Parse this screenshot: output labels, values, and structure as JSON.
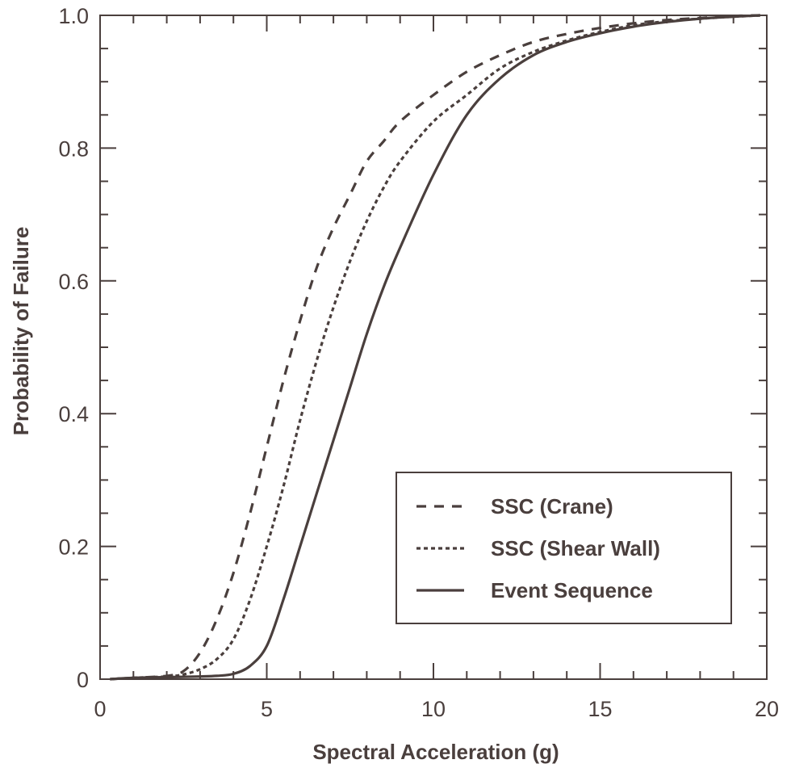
{
  "colors": {
    "ink": "#4a3f3d",
    "background": "#ffffff"
  },
  "chart_data": {
    "type": "line",
    "title": "",
    "xlabel": "Spectral Acceleration (g)",
    "ylabel": "Probability of Failure",
    "xlim": [
      0,
      20
    ],
    "ylim": [
      0,
      1.0
    ],
    "x_ticks": [
      0,
      5,
      10,
      15,
      20
    ],
    "x_tick_labels": [
      "0",
      "5",
      "10",
      "15",
      "20"
    ],
    "y_ticks": [
      0,
      0.2,
      0.4,
      0.6,
      0.8,
      1.0
    ],
    "y_tick_labels": [
      "0",
      "0.2",
      "0.4",
      "0.6",
      "0.8",
      "1.0"
    ],
    "grid": false,
    "legend_position": "lower-right",
    "series": [
      {
        "name": "SSC (Crane)",
        "style": "dashed",
        "x": [
          0.3,
          1.0,
          2.0,
          2.5,
          3.0,
          3.5,
          4.0,
          4.5,
          5.0,
          5.5,
          6.0,
          6.5,
          7.0,
          7.5,
          8.0,
          8.5,
          9.0,
          10.0,
          11.0,
          12.0,
          13.0,
          14.0,
          15.0,
          16.0,
          17.0,
          18.0,
          19.0,
          19.8
        ],
        "y": [
          0.0,
          0.002,
          0.005,
          0.012,
          0.04,
          0.09,
          0.16,
          0.25,
          0.35,
          0.45,
          0.54,
          0.62,
          0.68,
          0.73,
          0.78,
          0.81,
          0.84,
          0.88,
          0.915,
          0.94,
          0.96,
          0.972,
          0.981,
          0.988,
          0.993,
          0.996,
          0.999,
          1.0
        ]
      },
      {
        "name": "SSC (Shear Wall)",
        "style": "dotted",
        "x": [
          0.3,
          1.0,
          2.0,
          2.5,
          3.0,
          3.5,
          4.0,
          4.5,
          5.0,
          5.5,
          6.0,
          6.5,
          7.0,
          7.5,
          8.0,
          8.5,
          9.0,
          10.0,
          11.0,
          12.0,
          13.0,
          14.0,
          15.0,
          16.0,
          17.0,
          18.0,
          19.0,
          19.8
        ],
        "y": [
          0.0,
          0.002,
          0.004,
          0.007,
          0.015,
          0.03,
          0.06,
          0.12,
          0.2,
          0.29,
          0.39,
          0.48,
          0.56,
          0.63,
          0.69,
          0.74,
          0.78,
          0.84,
          0.88,
          0.92,
          0.945,
          0.962,
          0.975,
          0.985,
          0.991,
          0.995,
          0.998,
          1.0
        ]
      },
      {
        "name": "Event Sequence",
        "style": "solid",
        "x": [
          0.3,
          1.0,
          2.0,
          3.0,
          3.5,
          4.0,
          4.5,
          5.0,
          5.5,
          6.0,
          6.5,
          7.0,
          7.5,
          8.0,
          8.5,
          9.0,
          10.0,
          11.0,
          12.0,
          13.0,
          14.0,
          15.0,
          16.0,
          17.0,
          18.0,
          19.0,
          19.8
        ],
        "y": [
          0.0,
          0.002,
          0.003,
          0.004,
          0.005,
          0.008,
          0.02,
          0.05,
          0.12,
          0.2,
          0.28,
          0.36,
          0.44,
          0.52,
          0.59,
          0.65,
          0.76,
          0.85,
          0.905,
          0.94,
          0.96,
          0.973,
          0.983,
          0.99,
          0.995,
          0.998,
          1.0
        ]
      }
    ]
  }
}
